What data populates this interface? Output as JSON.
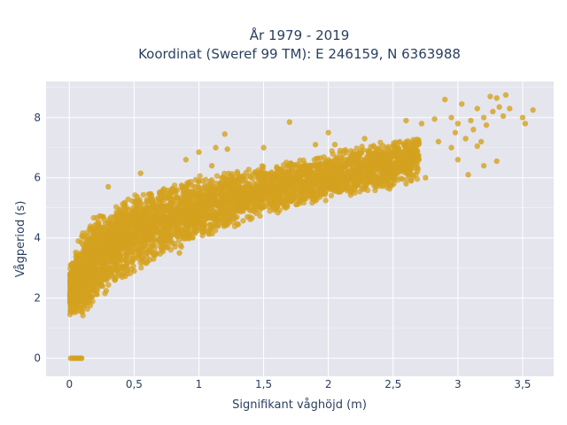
{
  "chart_data": {
    "type": "scatter",
    "title_line1": "År 1979 - 2019",
    "title_line2": "Koordinat (Sweref 99 TM): E 246159, N 6363988",
    "xlabel": "Signifikant våghöjd (m)",
    "ylabel": "Vågperiod (s)",
    "xlim": [
      -0.18,
      3.74
    ],
    "ylim": [
      -0.6,
      9.2
    ],
    "x_ticks": [
      {
        "value": 0,
        "label": "0"
      },
      {
        "value": 0.5,
        "label": "0,5"
      },
      {
        "value": 1,
        "label": "1"
      },
      {
        "value": 1.5,
        "label": "1,5"
      },
      {
        "value": 2,
        "label": "2"
      },
      {
        "value": 2.5,
        "label": "2,5"
      },
      {
        "value": 3,
        "label": "3"
      },
      {
        "value": 3.5,
        "label": "3,5"
      }
    ],
    "y_ticks": [
      {
        "value": 0,
        "label": "0"
      },
      {
        "value": 2,
        "label": "2"
      },
      {
        "value": 4,
        "label": "4"
      },
      {
        "value": 6,
        "label": "6"
      },
      {
        "value": 8,
        "label": "8"
      }
    ],
    "grid": true,
    "marker_color": "#d4a21f",
    "plot_background": "#e5e5ee",
    "density_band": {
      "x": [
        0.0,
        0.1,
        0.2,
        0.4,
        0.7,
        1.0,
        1.3,
        1.6,
        1.9,
        2.2,
        2.5,
        2.7
      ],
      "lower": [
        1.4,
        1.2,
        1.8,
        2.5,
        3.3,
        3.9,
        4.4,
        4.8,
        5.1,
        5.4,
        5.6,
        5.9
      ],
      "upper": [
        3.1,
        4.3,
        4.8,
        5.3,
        5.8,
        6.1,
        6.3,
        6.5,
        6.8,
        7.1,
        7.3,
        7.4
      ]
    },
    "zero_points_x": [
      0.01,
      0.025,
      0.04,
      0.055,
      0.07,
      0.085,
      0.095
    ],
    "outliers": [
      {
        "x": 1.2,
        "y": 7.45
      },
      {
        "x": 1.13,
        "y": 7.0
      },
      {
        "x": 1.0,
        "y": 6.85
      },
      {
        "x": 1.22,
        "y": 6.95
      },
      {
        "x": 1.5,
        "y": 7.0
      },
      {
        "x": 1.7,
        "y": 7.85
      },
      {
        "x": 1.9,
        "y": 7.1
      },
      {
        "x": 2.0,
        "y": 7.5
      },
      {
        "x": 2.05,
        "y": 7.1
      },
      {
        "x": 2.28,
        "y": 7.3
      },
      {
        "x": 2.12,
        "y": 6.9
      },
      {
        "x": 2.6,
        "y": 7.9
      },
      {
        "x": 2.72,
        "y": 7.8
      },
      {
        "x": 2.82,
        "y": 7.95
      },
      {
        "x": 2.85,
        "y": 7.2
      },
      {
        "x": 2.9,
        "y": 8.6
      },
      {
        "x": 2.95,
        "y": 8.0
      },
      {
        "x": 2.98,
        "y": 7.5
      },
      {
        "x": 3.0,
        "y": 7.8
      },
      {
        "x": 3.03,
        "y": 8.45
      },
      {
        "x": 3.06,
        "y": 7.3
      },
      {
        "x": 3.1,
        "y": 7.9
      },
      {
        "x": 3.12,
        "y": 7.6
      },
      {
        "x": 3.15,
        "y": 8.3
      },
      {
        "x": 3.18,
        "y": 7.2
      },
      {
        "x": 3.2,
        "y": 8.0
      },
      {
        "x": 3.22,
        "y": 7.75
      },
      {
        "x": 3.25,
        "y": 8.7
      },
      {
        "x": 3.27,
        "y": 8.2
      },
      {
        "x": 3.3,
        "y": 8.65
      },
      {
        "x": 3.32,
        "y": 8.35
      },
      {
        "x": 3.35,
        "y": 8.05
      },
      {
        "x": 3.37,
        "y": 8.75
      },
      {
        "x": 3.4,
        "y": 8.3
      },
      {
        "x": 3.5,
        "y": 8.0
      },
      {
        "x": 3.52,
        "y": 7.8
      },
      {
        "x": 3.58,
        "y": 8.25
      },
      {
        "x": 3.3,
        "y": 6.55
      },
      {
        "x": 3.2,
        "y": 6.4
      },
      {
        "x": 3.0,
        "y": 6.6
      },
      {
        "x": 3.08,
        "y": 6.1
      },
      {
        "x": 2.75,
        "y": 6.0
      },
      {
        "x": 2.6,
        "y": 5.8
      },
      {
        "x": 2.55,
        "y": 6.3
      },
      {
        "x": 3.15,
        "y": 7.05
      },
      {
        "x": 2.95,
        "y": 7.0
      },
      {
        "x": 0.35,
        "y": 2.6
      },
      {
        "x": 0.5,
        "y": 2.9
      },
      {
        "x": 0.65,
        "y": 3.3
      },
      {
        "x": 0.85,
        "y": 3.5
      },
      {
        "x": 0.3,
        "y": 5.7
      },
      {
        "x": 0.55,
        "y": 6.15
      },
      {
        "x": 0.9,
        "y": 6.6
      },
      {
        "x": 1.1,
        "y": 6.4
      }
    ]
  }
}
